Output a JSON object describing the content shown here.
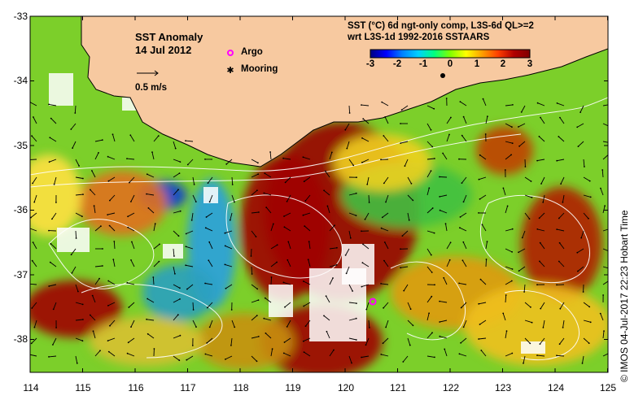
{
  "map": {
    "title": "SST Anomaly",
    "date": "14 Jul 2012",
    "scale_label": "0.5 m/s",
    "legend": {
      "argo_label": "Argo",
      "mooring_label": "Mooring",
      "argo_color": "#ff00ff",
      "mooring_color": "#000000"
    },
    "product_line1": "SST (°C) 6d ngt-only comp, L3S-6d QL>=2",
    "product_line2": "wrt L3S-1d 1992-2016 SSTAARS",
    "colorbar": {
      "ticks": [
        "-3",
        "-2",
        "-1",
        "0",
        "1",
        "2",
        "3"
      ],
      "range": [
        -3,
        3
      ],
      "colors": [
        "#000080",
        "#0000ff",
        "#0080ff",
        "#00d0ff",
        "#00ff80",
        "#80ff00",
        "#ffff00",
        "#ffa000",
        "#ff4000",
        "#b00000",
        "#800000"
      ]
    },
    "lat_ticks": [
      "-33",
      "-34",
      "-35",
      "-36",
      "-37",
      "-38"
    ],
    "lon_ticks": [
      "114",
      "115",
      "116",
      "117",
      "118",
      "119",
      "120",
      "121",
      "122",
      "123",
      "124",
      "125"
    ],
    "land_color": "#f7c9a0",
    "credit": "©  IMOS 04-Jul-2017 22:23 Hobart Time"
  }
}
